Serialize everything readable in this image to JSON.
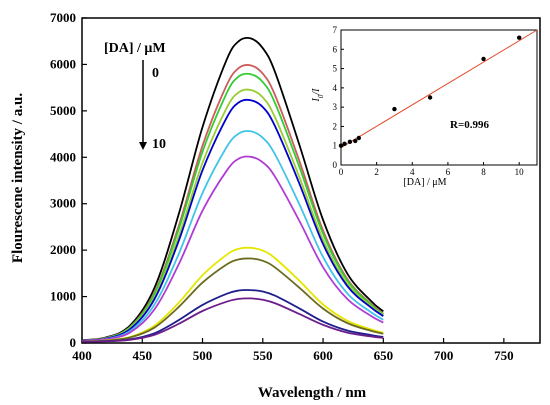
{
  "chart_data": [
    {
      "type": "line",
      "xlabel": "Wavelength / nm",
      "ylabel": "Flourescene intensity / a.u.",
      "xlim": [
        400,
        780
      ],
      "ylim": [
        0,
        7000
      ],
      "xticks": [
        400,
        450,
        500,
        550,
        600,
        650,
        700,
        750
      ],
      "yticks": [
        0,
        1000,
        2000,
        3000,
        4000,
        5000,
        6000,
        7000
      ],
      "annotation": {
        "label": "[DA] / μM",
        "start": "0",
        "end": "10"
      },
      "series_x": [
        400,
        420,
        440,
        460,
        480,
        500,
        520,
        530,
        540,
        550,
        560,
        580,
        600,
        620,
        640,
        650
      ],
      "series": [
        {
          "color": "#000000",
          "values": [
            60,
            120,
            380,
            1180,
            2750,
            4650,
            6100,
            6500,
            6560,
            6350,
            5850,
            4300,
            2650,
            1500,
            900,
            680
          ]
        },
        {
          "color": "#cd5c5c",
          "values": [
            55,
            110,
            350,
            1080,
            2500,
            4250,
            5550,
            5920,
            5980,
            5800,
            5350,
            3950,
            2420,
            1380,
            840,
            630
          ]
        },
        {
          "color": "#32cd32",
          "values": [
            55,
            105,
            340,
            1050,
            2430,
            4120,
            5380,
            5740,
            5790,
            5620,
            5180,
            3820,
            2350,
            1350,
            820,
            620
          ]
        },
        {
          "color": "#9acd32",
          "values": [
            50,
            100,
            320,
            980,
            2280,
            3880,
            5060,
            5400,
            5450,
            5290,
            4870,
            3600,
            2220,
            1280,
            790,
            600
          ]
        },
        {
          "color": "#0000cd",
          "values": [
            50,
            95,
            300,
            940,
            2180,
            3720,
            4850,
            5180,
            5230,
            5080,
            4680,
            3460,
            2130,
            1230,
            760,
            580
          ]
        },
        {
          "color": "#40c4e8",
          "values": [
            45,
            85,
            260,
            820,
            1900,
            3230,
            4220,
            4510,
            4560,
            4420,
            4070,
            3010,
            1850,
            1070,
            660,
            500
          ]
        },
        {
          "color": "#b03cd6",
          "values": [
            45,
            80,
            230,
            720,
            1680,
            2850,
            3710,
            3970,
            4010,
            3890,
            3590,
            2650,
            1630,
            950,
            580,
            440
          ]
        },
        {
          "color": "#e6e600",
          "values": [
            35,
            55,
            130,
            370,
            860,
            1460,
            1900,
            2030,
            2050,
            1990,
            1830,
            1350,
            830,
            480,
            290,
            220
          ]
        },
        {
          "color": "#6b6b1e",
          "values": [
            35,
            50,
            120,
            330,
            770,
            1300,
            1690,
            1800,
            1820,
            1770,
            1630,
            1200,
            740,
            430,
            260,
            200
          ]
        },
        {
          "color": "#1e1e8c",
          "values": [
            30,
            40,
            80,
            210,
            490,
            820,
            1060,
            1130,
            1140,
            1110,
            1020,
            750,
            460,
            270,
            170,
            130
          ]
        },
        {
          "color": "#6b1e8c",
          "values": [
            30,
            35,
            70,
            175,
            410,
            690,
            890,
            950,
            960,
            930,
            860,
            630,
            390,
            225,
            140,
            110
          ]
        }
      ]
    },
    {
      "type": "scatter",
      "xlabel": "[DA] / μM",
      "ylabel": "I0/I",
      "ylabel_main": "I",
      "ylabel_sub": "0",
      "ylabel_tail": "/I",
      "xlim": [
        0,
        11
      ],
      "ylim": [
        0,
        7
      ],
      "xticks": [
        0,
        2,
        4,
        6,
        8,
        10
      ],
      "yticks": [
        0,
        1,
        2,
        3,
        4,
        5,
        6,
        7
      ],
      "x": [
        0,
        0.2,
        0.5,
        0.8,
        1,
        3,
        5,
        8,
        10
      ],
      "y": [
        1.0,
        1.1,
        1.2,
        1.25,
        1.4,
        2.9,
        3.5,
        5.5,
        6.6
      ],
      "fit": {
        "x": [
          0,
          11
        ],
        "y": [
          0.9,
          7.0
        ]
      },
      "annotation": "R=0.996",
      "fit_color": "#e34b2a"
    }
  ]
}
